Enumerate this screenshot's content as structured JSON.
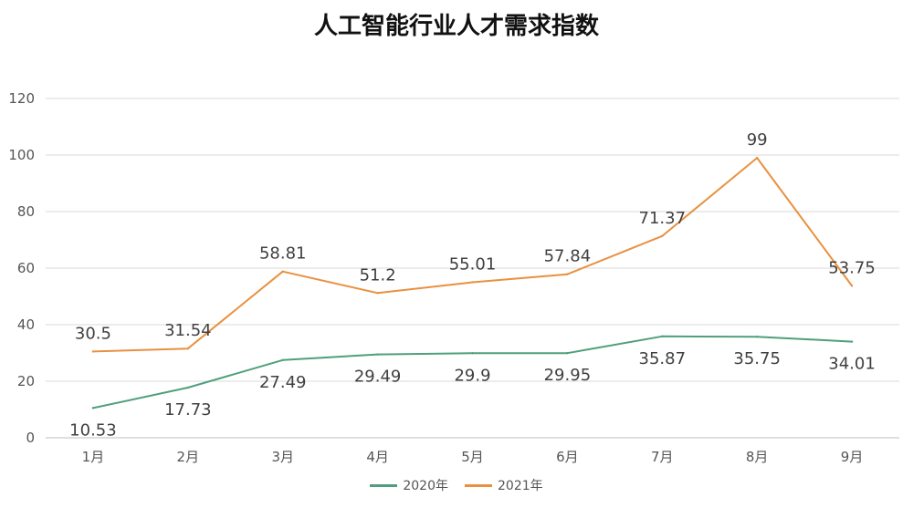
{
  "chart_data": {
    "type": "line",
    "title": "人工智能行业人才需求指数",
    "categories": [
      "1月",
      "2月",
      "3月",
      "4月",
      "5月",
      "6月",
      "7月",
      "8月",
      "9月"
    ],
    "yticks": [
      "0",
      "20",
      "40",
      "60",
      "80",
      "100",
      "120"
    ],
    "ylim": [
      0,
      120
    ],
    "grid": true,
    "legend_position": "bottom",
    "series": [
      {
        "name": "2020年",
        "color": "#4f9f7c",
        "values": [
          10.53,
          17.73,
          27.49,
          29.49,
          29.9,
          29.95,
          35.87,
          35.75,
          34.01
        ],
        "labels": [
          "10.53",
          "17.73",
          "27.49",
          "29.49",
          "29.9",
          "29.95",
          "35.87",
          "35.75",
          "34.01"
        ]
      },
      {
        "name": "2021年",
        "color": "#e8913f",
        "values": [
          30.5,
          31.54,
          58.81,
          51.2,
          55.01,
          57.84,
          71.37,
          99,
          53.75
        ],
        "labels": [
          "30.5",
          "31.54",
          "58.81",
          "51.2",
          "55.01",
          "57.84",
          "71.37",
          "99",
          "53.75"
        ]
      }
    ]
  }
}
